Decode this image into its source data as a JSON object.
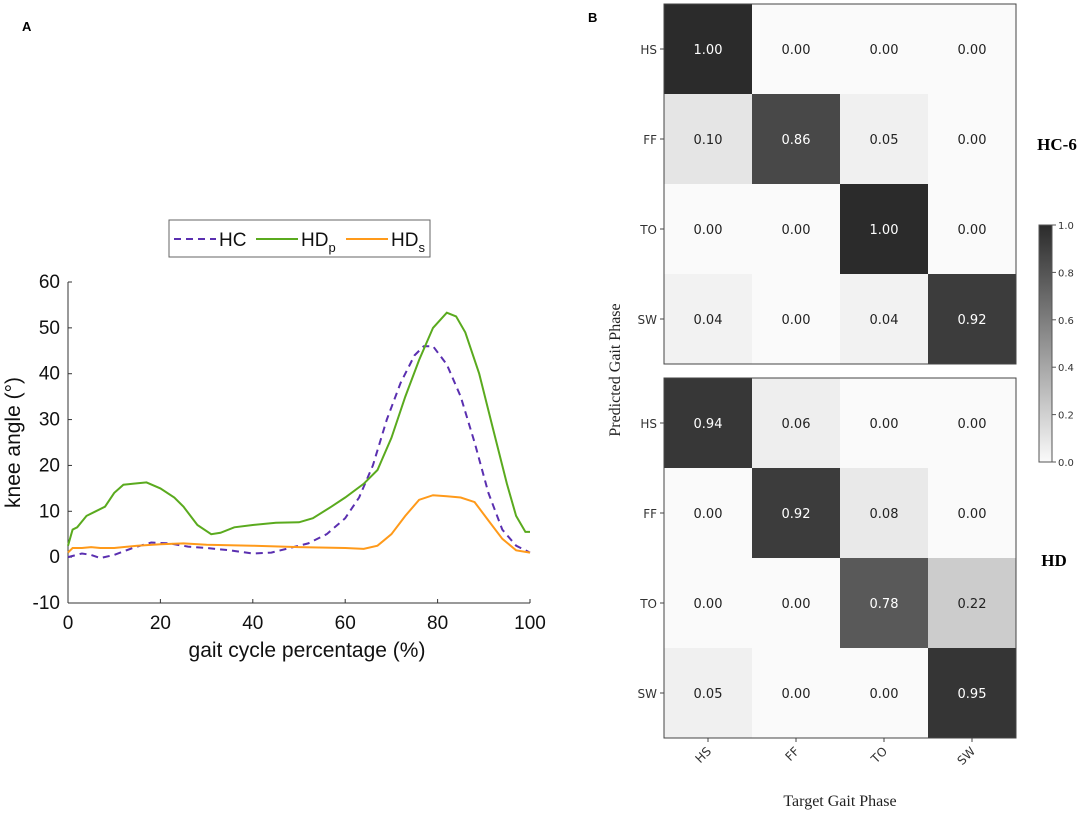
{
  "panel_labels": {
    "a": "A",
    "b": "B"
  },
  "chart_data": [
    {
      "type": "line",
      "xlabel": "gait cycle percentage (%)",
      "ylabel": "knee angle (°)",
      "xlim": [
        0,
        100
      ],
      "ylim": [
        -10,
        60
      ],
      "xticks": [
        "0",
        "20",
        "40",
        "60",
        "80",
        "100"
      ],
      "yticks": [
        "60",
        "50",
        "40",
        "30",
        "20",
        "10",
        "0",
        "-10"
      ],
      "legend_position": "top-center",
      "series": [
        {
          "name": "HC",
          "sub": "",
          "color": "#5a2fb0",
          "dashed": true,
          "points": [
            [
              0,
              0
            ],
            [
              3,
              0.8
            ],
            [
              5,
              0.5
            ],
            [
              7,
              -0.2
            ],
            [
              10,
              0.5
            ],
            [
              14,
              2
            ],
            [
              18,
              3.2
            ],
            [
              22,
              3
            ],
            [
              26,
              2.3
            ],
            [
              30,
              2
            ],
            [
              35,
              1.5
            ],
            [
              40,
              0.8
            ],
            [
              44,
              1
            ],
            [
              48,
              2
            ],
            [
              52,
              3
            ],
            [
              56,
              5
            ],
            [
              60,
              8.5
            ],
            [
              63,
              13
            ],
            [
              66,
              20
            ],
            [
              69,
              30
            ],
            [
              72,
              38
            ],
            [
              75,
              44
            ],
            [
              77,
              46
            ],
            [
              79,
              46
            ],
            [
              82,
              42
            ],
            [
              85,
              35
            ],
            [
              88,
              25
            ],
            [
              91,
              14
            ],
            [
              94,
              6
            ],
            [
              97,
              2.5
            ],
            [
              100,
              1
            ]
          ]
        },
        {
          "name": "HD",
          "sub": "p",
          "color": "#5aaa1e",
          "dashed": false,
          "points": [
            [
              0,
              2.5
            ],
            [
              1,
              6
            ],
            [
              2,
              6.5
            ],
            [
              4,
              9
            ],
            [
              6,
              10
            ],
            [
              8,
              11
            ],
            [
              10,
              14
            ],
            [
              12,
              15.8
            ],
            [
              14,
              16
            ],
            [
              17,
              16.3
            ],
            [
              20,
              15
            ],
            [
              23,
              13
            ],
            [
              25,
              11
            ],
            [
              28,
              7
            ],
            [
              31,
              5
            ],
            [
              33,
              5.3
            ],
            [
              36,
              6.5
            ],
            [
              40,
              7
            ],
            [
              45,
              7.5
            ],
            [
              50,
              7.6
            ],
            [
              53,
              8.5
            ],
            [
              57,
              11
            ],
            [
              60,
              13
            ],
            [
              64,
              16
            ],
            [
              67,
              19
            ],
            [
              70,
              26
            ],
            [
              73,
              35
            ],
            [
              76,
              43
            ],
            [
              79,
              50
            ],
            [
              82,
              53.3
            ],
            [
              84,
              52.5
            ],
            [
              86,
              49
            ],
            [
              89,
              40
            ],
            [
              92,
              28
            ],
            [
              95,
              16
            ],
            [
              97,
              9
            ],
            [
              99,
              5.5
            ],
            [
              100,
              5.5
            ]
          ]
        },
        {
          "name": "HD",
          "sub": "s",
          "color": "#ff9a1a",
          "dashed": false,
          "points": [
            [
              0,
              1
            ],
            [
              1,
              2
            ],
            [
              3,
              2
            ],
            [
              5,
              2.2
            ],
            [
              7,
              2
            ],
            [
              10,
              2
            ],
            [
              15,
              2.5
            ],
            [
              20,
              2.8
            ],
            [
              25,
              3
            ],
            [
              30,
              2.7
            ],
            [
              40,
              2.5
            ],
            [
              50,
              2.2
            ],
            [
              60,
              2
            ],
            [
              64,
              1.8
            ],
            [
              67,
              2.5
            ],
            [
              70,
              5
            ],
            [
              73,
              9
            ],
            [
              76,
              12.5
            ],
            [
              79,
              13.5
            ],
            [
              82,
              13.3
            ],
            [
              85,
              13
            ],
            [
              88,
              12
            ],
            [
              91,
              8
            ],
            [
              94,
              4
            ],
            [
              97,
              1.5
            ],
            [
              100,
              1
            ]
          ]
        }
      ]
    },
    {
      "type": "heatmap",
      "xlabel": "Target Gait Phase",
      "ylabel": "Predicted Gait Phase",
      "categories": [
        "HS",
        "FF",
        "TO",
        "SW"
      ],
      "colorbar": {
        "range": [
          0,
          1
        ],
        "ticks": [
          "1.0",
          "0.8",
          "0.6",
          "0.4",
          "0.2",
          "0.0"
        ]
      },
      "matrices": [
        {
          "name": "HC-6",
          "values": [
            [
              "1.00",
              "0.00",
              "0.00",
              "0.00"
            ],
            [
              "0.10",
              "0.86",
              "0.05",
              "0.00"
            ],
            [
              "0.00",
              "0.00",
              "1.00",
              "0.00"
            ],
            [
              "0.04",
              "0.00",
              "0.04",
              "0.92"
            ]
          ]
        },
        {
          "name": "HD",
          "values": [
            [
              "0.94",
              "0.06",
              "0.00",
              "0.00"
            ],
            [
              "0.00",
              "0.92",
              "0.08",
              "0.00"
            ],
            [
              "0.00",
              "0.00",
              "0.78",
              "0.22"
            ],
            [
              "0.05",
              "0.00",
              "0.00",
              "0.95"
            ]
          ]
        }
      ]
    }
  ]
}
